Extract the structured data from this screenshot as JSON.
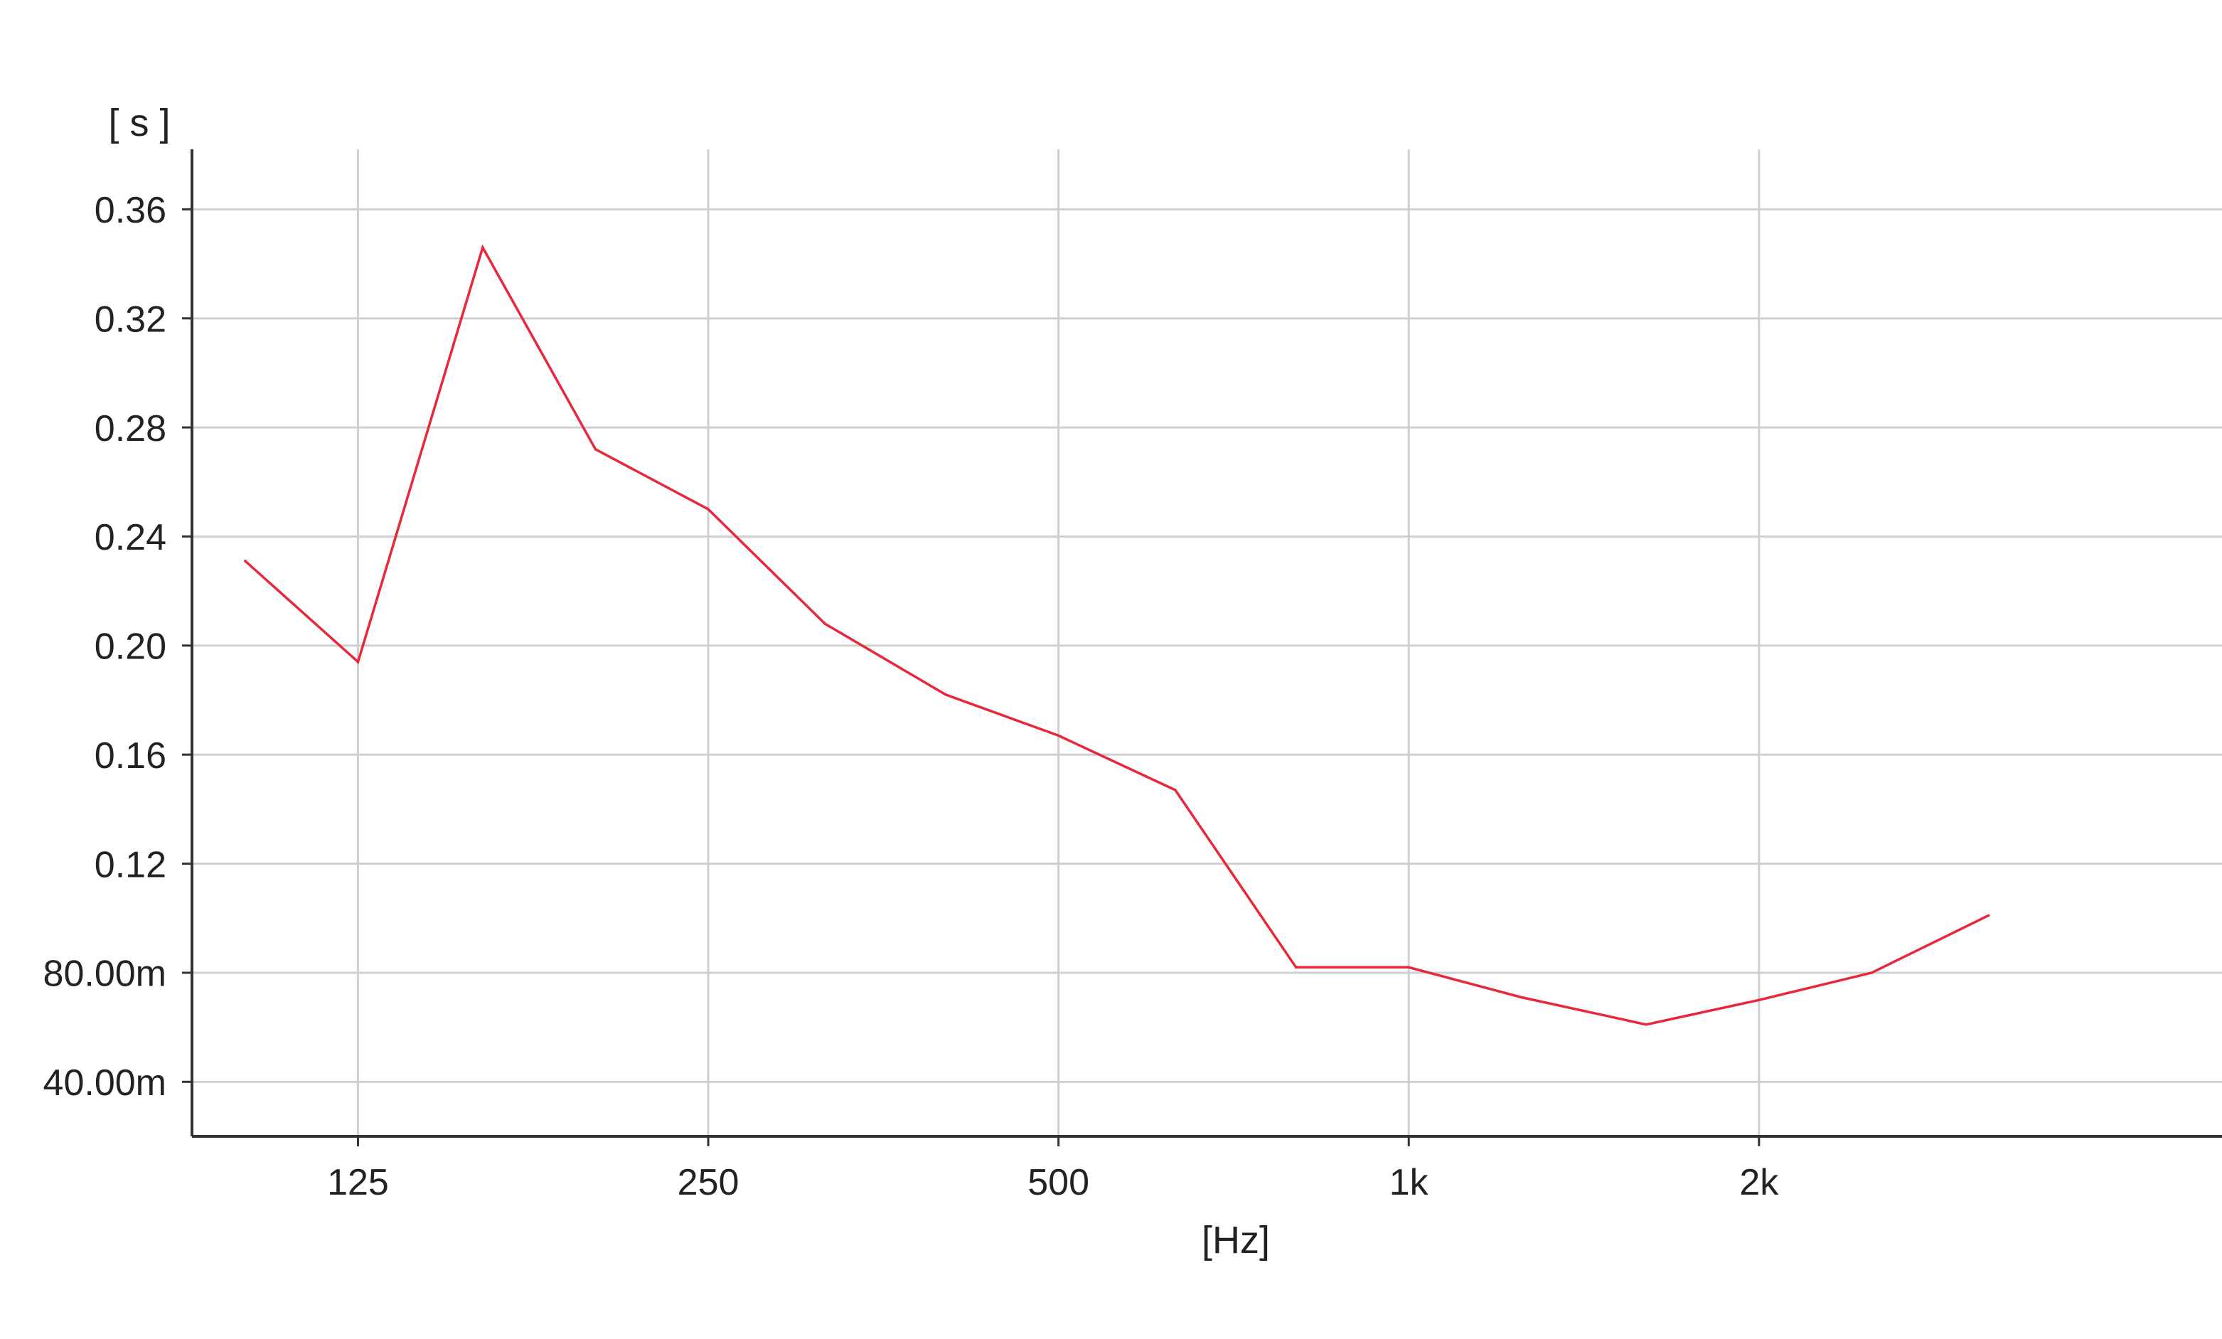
{
  "chart_data": {
    "type": "line",
    "title": "",
    "xlabel": "[Hz]",
    "ylabel": "[ s ]",
    "x_scale": "log",
    "x_ticks": [
      {
        "value": 125,
        "label": "125"
      },
      {
        "value": 250,
        "label": "250"
      },
      {
        "value": 500,
        "label": "500"
      },
      {
        "value": 1000,
        "label": "1k"
      },
      {
        "value": 2000,
        "label": "2k"
      }
    ],
    "y_ticks": [
      {
        "value": 0.04,
        "label": "40.00m"
      },
      {
        "value": 0.08,
        "label": "80.00m"
      },
      {
        "value": 0.12,
        "label": "0.12"
      },
      {
        "value": 0.16,
        "label": "0.16"
      },
      {
        "value": 0.2,
        "label": "0.20"
      },
      {
        "value": 0.24,
        "label": "0.24"
      },
      {
        "value": 0.28,
        "label": "0.28"
      },
      {
        "value": 0.32,
        "label": "0.32"
      },
      {
        "value": 0.36,
        "label": "0.36"
      }
    ],
    "xlim": [
      90,
      5000
    ],
    "ylim": [
      0.02,
      0.382
    ],
    "grid": true,
    "series": [
      {
        "color": "#e8283a",
        "x": [
          100,
          125,
          160,
          200,
          250,
          315,
          400,
          500,
          630,
          800,
          1000,
          1250,
          1600,
          2000,
          2500,
          3150
        ],
        "y": [
          0.231,
          0.194,
          0.346,
          0.272,
          0.25,
          0.208,
          0.182,
          0.167,
          0.147,
          0.082,
          0.082,
          0.071,
          0.061,
          0.07,
          0.08,
          0.101
        ]
      }
    ]
  }
}
